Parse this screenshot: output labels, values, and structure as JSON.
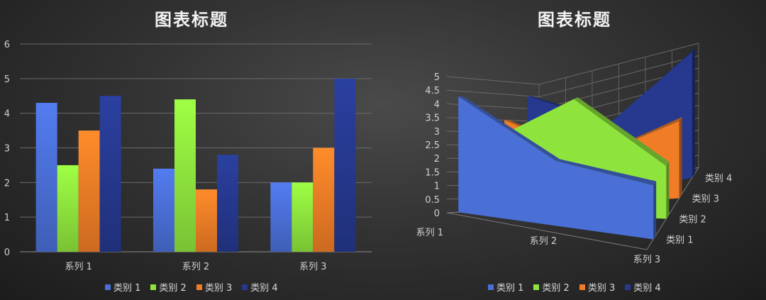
{
  "colors": {
    "series1": "#4a6fd6",
    "series2": "#8ee43d",
    "series3": "#f07d26",
    "series4": "#26398f"
  },
  "chart_data": [
    {
      "type": "bar",
      "title": "图表标题",
      "categories": [
        "系列 1",
        "系列 2",
        "系列 3"
      ],
      "series": [
        {
          "name": "类别 1",
          "values": [
            4.3,
            2.4,
            2.0
          ]
        },
        {
          "name": "类别 2",
          "values": [
            2.5,
            4.4,
            2.0
          ]
        },
        {
          "name": "类别 3",
          "values": [
            3.5,
            1.8,
            3.0
          ]
        },
        {
          "name": "类别 4",
          "values": [
            4.5,
            2.8,
            5.0
          ]
        }
      ],
      "ylim": [
        0,
        6
      ],
      "yticks": [
        "0",
        "1",
        "2",
        "3",
        "4",
        "5",
        "6"
      ],
      "grid": true,
      "legend": "bottom"
    },
    {
      "type": "area",
      "subtype": "3d-area",
      "title": "图表标题",
      "categories": [
        "系列 1",
        "系列 2",
        "系列 3"
      ],
      "series": [
        {
          "name": "类别 1",
          "values": [
            4.3,
            2.4,
            2.0
          ]
        },
        {
          "name": "类别 2",
          "values": [
            2.5,
            4.4,
            2.0
          ]
        },
        {
          "name": "类别 3",
          "values": [
            3.5,
            1.8,
            3.0
          ]
        },
        {
          "name": "类别 4",
          "values": [
            4.5,
            2.8,
            5.0
          ]
        }
      ],
      "ylim": [
        0,
        5
      ],
      "yticks": [
        "0",
        "0.5",
        "1",
        "1.5",
        "2",
        "2.5",
        "3",
        "3.5",
        "4",
        "4.5",
        "5"
      ],
      "depth_labels": [
        "类别 1",
        "类别 2",
        "类别 3",
        "类别 4"
      ],
      "grid": true,
      "legend": "bottom"
    }
  ]
}
